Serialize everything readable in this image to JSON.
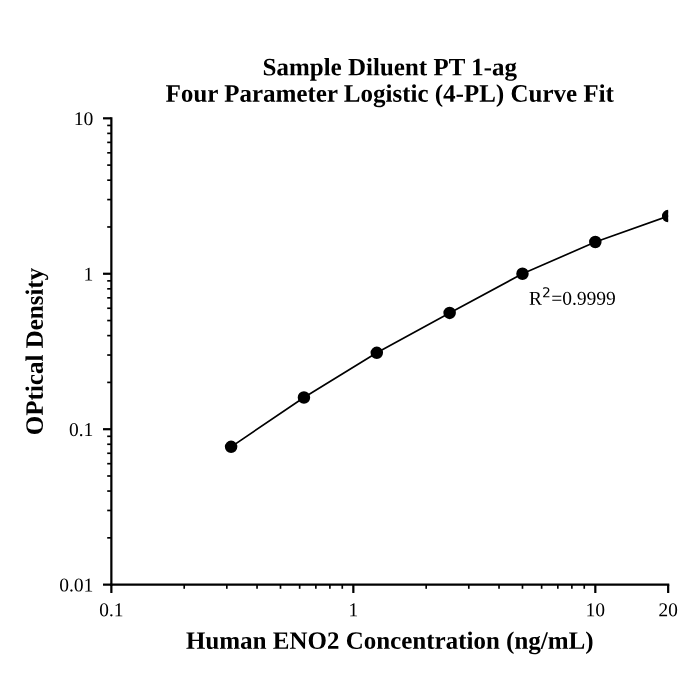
{
  "chart_data": {
    "type": "line",
    "title": "Sample Diluent PT 1-ag\nFour Parameter Logistic (4-PL) Curve Fit",
    "xlabel": "Human ENO2 Concentration (ng/mL)",
    "ylabel": "OPtical Density",
    "x": [
      0.3125,
      0.625,
      1.25,
      2.5,
      5,
      10,
      20
    ],
    "series": [
      {
        "color": "#000000",
        "values": [
          0.077,
          0.16,
          0.31,
          0.56,
          1.0,
          1.6,
          2.35
        ]
      }
    ],
    "log": "xy",
    "xlim": [
      0.1,
      20
    ],
    "ylim": [
      0.01,
      10
    ],
    "xticks": [
      0.1,
      1,
      10,
      20
    ],
    "yticks": [
      0.01,
      0.1,
      1,
      10
    ],
    "marker": "circle",
    "line_style": "solid",
    "grid": false,
    "legend": false,
    "annotations": [
      "R$^{2}$=0.9999"
    ]
  }
}
